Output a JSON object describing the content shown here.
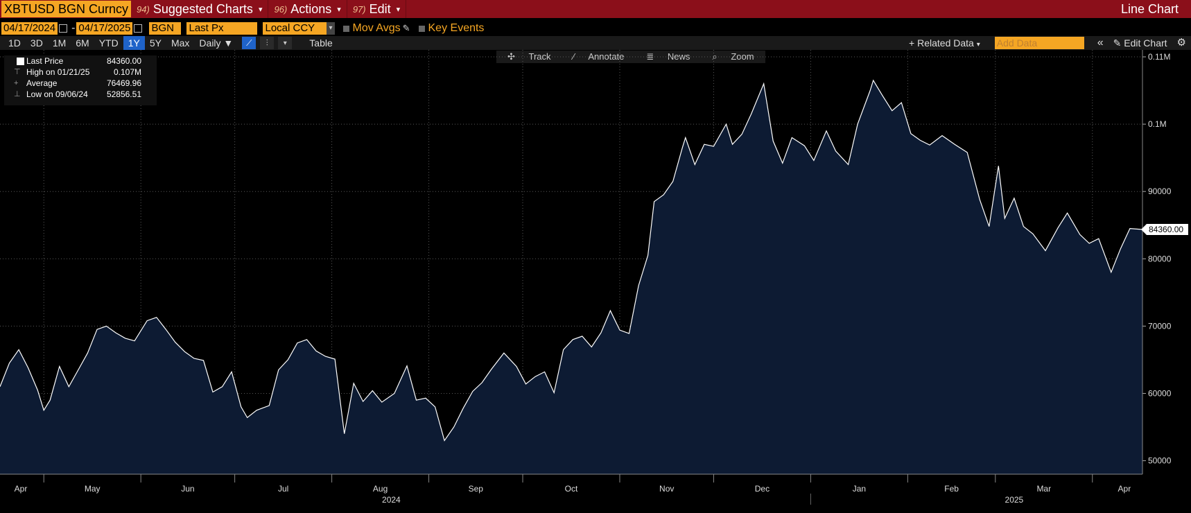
{
  "header": {
    "ticker": "XBTUSD BGN Curncy",
    "menus": [
      {
        "num": "94)",
        "label": "Suggested Charts"
      },
      {
        "num": "96)",
        "label": "Actions"
      },
      {
        "num": "97)",
        "label": "Edit"
      }
    ],
    "chart_type_label": "Line Chart"
  },
  "params": {
    "start_date": "04/17/2024",
    "end_date": "04/17/2025",
    "source": "BGN",
    "field": "Last Px",
    "currency": "Local CCY",
    "mov_avgs": "Mov Avgs",
    "key_events": "Key Events"
  },
  "toolbar": {
    "ranges": [
      "1D",
      "3D",
      "1M",
      "6M",
      "YTD",
      "1Y",
      "5Y",
      "Max"
    ],
    "selected_range": "1Y",
    "frequency": "Daily ▼",
    "table": "Table",
    "related_data": "+ Related Data",
    "add_data_placeholder": "Add Data",
    "edit_chart": "Edit Chart",
    "chevrons": "«"
  },
  "tools": [
    "Track",
    "Annotate",
    "News",
    "Zoom"
  ],
  "legend": {
    "last_label": "Last Price",
    "last_value": "84360.00",
    "high_label": "High on 01/21/25",
    "high_value": "0.107M",
    "avg_label": "Average",
    "avg_value": "76469.96",
    "low_label": "Low on 09/06/24",
    "low_value": "52856.51"
  },
  "colors": {
    "line": "#ffffff",
    "fill": "#0d1b33",
    "grid": "#5a5a5a",
    "accent_orange": "#f5a623",
    "header_red": "#8b0f1a",
    "selected_blue": "#1f63c9"
  },
  "chart_data": {
    "type": "area",
    "title": "",
    "xlabel": "",
    "ylabel": "",
    "ylim": [
      48000,
      110000
    ],
    "y_ticks": [
      50000,
      60000,
      70000,
      80000,
      90000,
      100000,
      110000
    ],
    "y_tick_labels": [
      "50000",
      "60000",
      "70000",
      "80000",
      "90000",
      "0.1M",
      "0.11M"
    ],
    "x_range": [
      "2024-04-17",
      "2025-04-17"
    ],
    "month_ticks": [
      {
        "date": "2024-05-01",
        "label": "Apr"
      },
      {
        "date": "2024-06-01",
        "label": "May"
      },
      {
        "date": "2024-07-01",
        "label": "Jun"
      },
      {
        "date": "2024-08-01",
        "label": "Jul"
      },
      {
        "date": "2024-09-01",
        "label": "Aug"
      },
      {
        "date": "2024-10-01",
        "label": "Sep"
      },
      {
        "date": "2024-11-01",
        "label": "Oct"
      },
      {
        "date": "2024-12-01",
        "label": "Nov"
      },
      {
        "date": "2025-01-01",
        "label": "Dec"
      },
      {
        "date": "2025-02-01",
        "label": "Jan"
      },
      {
        "date": "2025-03-01",
        "label": "Feb"
      },
      {
        "date": "2025-04-01",
        "label": "Mar"
      },
      {
        "date": "2025-04-30",
        "label": "Apr"
      }
    ],
    "year_labels": [
      {
        "label": "2024",
        "date": "2024-08-20"
      },
      {
        "label": "2025",
        "date": "2025-03-07"
      }
    ],
    "last_price_label": "84360.00",
    "grid": true,
    "series": [
      {
        "x": [
          "2024-04-17",
          "2024-04-20",
          "2024-04-23",
          "2024-04-26",
          "2024-04-29",
          "2024-05-01",
          "2024-05-03",
          "2024-05-06",
          "2024-05-09",
          "2024-05-12",
          "2024-05-15",
          "2024-05-18",
          "2024-05-21",
          "2024-05-24",
          "2024-05-27",
          "2024-05-30",
          "2024-06-03",
          "2024-06-06",
          "2024-06-09",
          "2024-06-12",
          "2024-06-15",
          "2024-06-18",
          "2024-06-21",
          "2024-06-24",
          "2024-06-27",
          "2024-06-30",
          "2024-07-03",
          "2024-07-05",
          "2024-07-08",
          "2024-07-12",
          "2024-07-15",
          "2024-07-18",
          "2024-07-21",
          "2024-07-24",
          "2024-07-27",
          "2024-07-30",
          "2024-08-02",
          "2024-08-05",
          "2024-08-08",
          "2024-08-11",
          "2024-08-14",
          "2024-08-17",
          "2024-08-21",
          "2024-08-25",
          "2024-08-28",
          "2024-08-31",
          "2024-09-03",
          "2024-09-06",
          "2024-09-09",
          "2024-09-12",
          "2024-09-15",
          "2024-09-18",
          "2024-09-21",
          "2024-09-25",
          "2024-09-29",
          "2024-10-02",
          "2024-10-05",
          "2024-10-08",
          "2024-10-11",
          "2024-10-14",
          "2024-10-17",
          "2024-10-20",
          "2024-10-23",
          "2024-10-26",
          "2024-10-29",
          "2024-11-01",
          "2024-11-04",
          "2024-11-07",
          "2024-11-10",
          "2024-11-12",
          "2024-11-15",
          "2024-11-18",
          "2024-11-21",
          "2024-11-22",
          "2024-11-25",
          "2024-11-28",
          "2024-12-01",
          "2024-12-05",
          "2024-12-07",
          "2024-12-10",
          "2024-12-13",
          "2024-12-17",
          "2024-12-20",
          "2024-12-23",
          "2024-12-26",
          "2024-12-30",
          "2025-01-02",
          "2025-01-06",
          "2025-01-09",
          "2025-01-13",
          "2025-01-16",
          "2025-01-20",
          "2025-01-21",
          "2025-01-24",
          "2025-01-27",
          "2025-01-30",
          "2025-02-02",
          "2025-02-05",
          "2025-02-08",
          "2025-02-12",
          "2025-02-16",
          "2025-02-20",
          "2025-02-24",
          "2025-02-27",
          "2025-03-02",
          "2025-03-04",
          "2025-03-07",
          "2025-03-10",
          "2025-03-13",
          "2025-03-17",
          "2025-03-21",
          "2025-03-24",
          "2025-03-28",
          "2025-03-31",
          "2025-04-03",
          "2025-04-07",
          "2025-04-10",
          "2025-04-13",
          "2025-04-17"
        ],
        "values": [
          61000,
          64500,
          66500,
          63800,
          60500,
          57500,
          59000,
          64000,
          61000,
          63500,
          66000,
          69500,
          70000,
          69000,
          68200,
          67800,
          70800,
          71300,
          69500,
          67600,
          66200,
          65200,
          64900,
          60200,
          61000,
          63200,
          58000,
          56400,
          57500,
          58200,
          63500,
          65000,
          67500,
          68000,
          66300,
          65500,
          65100,
          54000,
          61500,
          58800,
          60400,
          58700,
          60000,
          64100,
          59000,
          59300,
          58000,
          53000,
          55000,
          57800,
          60300,
          61600,
          63600,
          66000,
          64000,
          61400,
          62500,
          63200,
          60100,
          66500,
          68000,
          68500,
          66900,
          69000,
          72300,
          69400,
          68900,
          76000,
          80500,
          88500,
          89500,
          91500,
          96500,
          98000,
          94000,
          97000,
          96700,
          100000,
          97000,
          98500,
          101500,
          106000,
          97500,
          94200,
          98000,
          96800,
          94600,
          99000,
          96000,
          94000,
          100000,
          105000,
          106500,
          104200,
          102000,
          103200,
          98600,
          97600,
          96900,
          98300,
          97000,
          95800,
          88800,
          84800,
          93800,
          86000,
          89000,
          84800,
          83700,
          81200,
          84600,
          86800,
          83600,
          82300,
          83000,
          78000,
          81500,
          84500,
          84360
        ]
      }
    ]
  }
}
